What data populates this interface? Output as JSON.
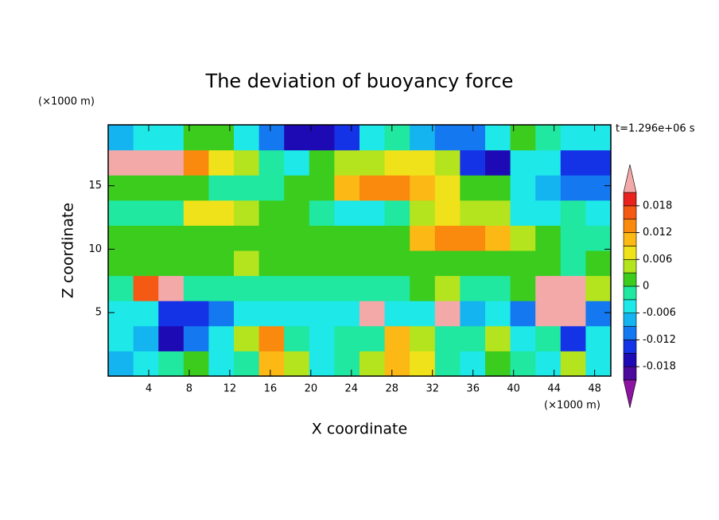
{
  "chart_data": {
    "type": "contour",
    "title": "The deviation of buoyancy force",
    "x_label": "X coordinate",
    "y_label": "Z coordinate",
    "x_unit": "(×1000 m)",
    "y_unit": "(×1000 m)",
    "time_label": "t=1.296e+06 s",
    "xlim": [
      0,
      49.6
    ],
    "ylim": [
      0,
      19.8
    ],
    "xticks": [
      4,
      8,
      12,
      16,
      20,
      24,
      28,
      32,
      36,
      40,
      44,
      48
    ],
    "yticks": [
      5,
      10,
      15
    ],
    "levels": [
      -0.021,
      -0.018,
      -0.015,
      -0.012,
      -0.009,
      -0.006,
      -0.003,
      0,
      0.003,
      0.006,
      0.009,
      0.012,
      0.015,
      0.018,
      0.021
    ],
    "colors": [
      "#8c14a0",
      "#4b0a9b",
      "#1e0ab4",
      "#1432e6",
      "#1478f0",
      "#14b4f0",
      "#1ee8e8",
      "#20e8a0",
      "#3ccc1e",
      "#b4e41e",
      "#f0e21a",
      "#fcb814",
      "#f98a0e",
      "#f45a14",
      "#e8231e",
      "#f4a9a9"
    ],
    "colorbar_ticks": [
      0.018,
      0.012,
      0.006,
      0,
      -0.006,
      -0.012,
      -0.018
    ],
    "z": [
      [
        -0.007,
        -0.004,
        -0.002,
        0.001,
        -0.004,
        -0.002,
        0.011,
        0.004,
        -0.004,
        -0.002,
        0.003,
        0.01,
        0.006,
        -0.002,
        -0.004,
        0.002,
        -0.001,
        -0.004,
        0.004,
        -0.005
      ],
      [
        -0.004,
        -0.008,
        -0.017,
        -0.012,
        -0.004,
        0.004,
        0.013,
        -0.002,
        -0.004,
        -0.003,
        -0.001,
        0.009,
        0.004,
        -0.003,
        -0.001,
        0.003,
        -0.004,
        -0.002,
        -0.014,
        -0.006
      ],
      [
        -0.004,
        -0.005,
        -0.013,
        -0.014,
        -0.01,
        -0.005,
        -0.004,
        -0.004,
        -0.006,
        -0.004,
        0.022,
        -0.004,
        -0.006,
        0.022,
        -0.008,
        -0.004,
        -0.012,
        0.022,
        0.022,
        -0.012
      ],
      [
        -0.003,
        0.015,
        0.022,
        -0.002,
        -0.001,
        -0.002,
        -0.003,
        -0.002,
        -0.003,
        -0.002,
        -0.001,
        -0.002,
        0.002,
        0.005,
        -0.002,
        -0.003,
        0.002,
        0.022,
        0.022,
        0.003
      ],
      [
        0.001,
        0.002,
        0.001,
        0.002,
        0.001,
        0.003,
        0.001,
        0.001,
        0.002,
        0.0,
        0.001,
        0.002,
        0.001,
        0.0,
        0.001,
        0.002,
        0.001,
        0.0,
        -0.002,
        0.0
      ],
      [
        0.001,
        0.002,
        0.001,
        0.001,
        0.002,
        0.002,
        0.001,
        0.002,
        0.001,
        0.001,
        0.002,
        0.002,
        0.011,
        0.014,
        0.012,
        0.009,
        0.004,
        0.002,
        -0.003,
        -0.002
      ],
      [
        -0.002,
        -0.003,
        -0.003,
        0.006,
        0.008,
        0.005,
        0.002,
        0.001,
        -0.003,
        -0.004,
        -0.004,
        -0.003,
        0.004,
        0.006,
        0.005,
        0.003,
        -0.004,
        -0.004,
        -0.003,
        -0.004
      ],
      [
        0.002,
        0.001,
        0.002,
        0.001,
        -0.003,
        -0.003,
        -0.002,
        0.001,
        0.002,
        0.01,
        0.014,
        0.013,
        0.009,
        0.006,
        0.001,
        0.001,
        -0.004,
        -0.007,
        -0.01,
        -0.012
      ],
      [
        0.022,
        0.024,
        0.023,
        0.013,
        0.008,
        0.005,
        -0.003,
        -0.004,
        0.002,
        0.004,
        0.003,
        0.006,
        0.008,
        0.004,
        -0.015,
        -0.016,
        -0.006,
        -0.004,
        -0.013,
        -0.014
      ],
      [
        -0.008,
        -0.005,
        -0.004,
        0.001,
        0.001,
        -0.004,
        -0.012,
        -0.016,
        -0.017,
        -0.014,
        -0.004,
        -0.003,
        -0.009,
        -0.011,
        -0.01,
        -0.004,
        0.001,
        -0.003,
        -0.006,
        -0.005
      ]
    ]
  }
}
